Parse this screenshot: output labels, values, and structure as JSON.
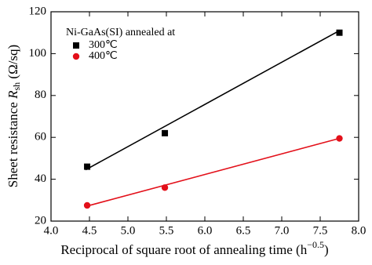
{
  "chart_data": {
    "type": "scatter",
    "ylabel": {
      "text": "Sheet resistance ",
      "symbol": "R",
      "subscript": "sh",
      "unit": " (Ω/sq)"
    },
    "xlabel": {
      "text": "Reciprocal of square root of annealing time (h",
      "superscript": "−0.5",
      "end": ")"
    },
    "legend_title": "Ni-GaAs(SI) annealed at",
    "legend_position": "upper left",
    "xlim": [
      4.0,
      8.0
    ],
    "xticks": [
      {
        "value": 4,
        "label": "4.0"
      },
      4.5,
      {
        "value": 5,
        "label": "5.0"
      },
      5.5,
      {
        "value": 6,
        "label": "6.0"
      },
      6.5,
      {
        "value": 7,
        "label": "7.0"
      },
      7.5,
      {
        "value": 8,
        "label": "8.0"
      }
    ],
    "ylim": [
      20,
      120
    ],
    "yticks": [
      20,
      40,
      60,
      80,
      100,
      120
    ],
    "series": [
      {
        "name": "300℃",
        "color": "#000000",
        "marker": "square",
        "x": [
          4.47,
          5.48,
          7.75
        ],
        "values": [
          46,
          62,
          110
        ],
        "fit_line": {
          "x": [
            4.45,
            7.75
          ],
          "values": [
            44.5,
            111
          ]
        }
      },
      {
        "name": "400℃",
        "color": "#e3101a",
        "marker": "circle",
        "x": [
          4.47,
          5.48,
          7.75
        ],
        "values": [
          27.5,
          36,
          59.5
        ],
        "fit_line": {
          "x": [
            4.45,
            7.75
          ],
          "values": [
            27,
            59.5
          ]
        }
      }
    ]
  }
}
